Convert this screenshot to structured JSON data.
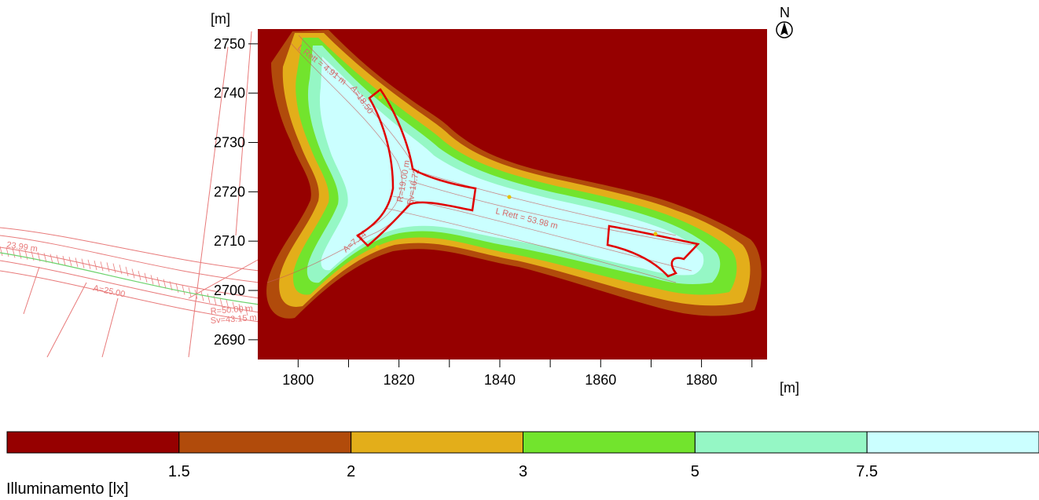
{
  "chart_data": {
    "type": "heatmap",
    "title": "",
    "xlabel": "",
    "ylabel": "",
    "x_unit": "[m]",
    "y_unit": "[m]",
    "xlim": [
      1792,
      1893
    ],
    "ylim": [
      2686,
      2753
    ],
    "x_ticks": [
      1800,
      1820,
      1840,
      1860,
      1880
    ],
    "y_ticks": [
      2690,
      2700,
      2710,
      2720,
      2730,
      2740,
      2750
    ],
    "north_label": "N",
    "legend": {
      "title": "Illuminamento [lx]",
      "thresholds": [
        "1.5",
        "2",
        "3",
        "5",
        "7.5"
      ],
      "colors": [
        "#960000",
        "#b14b0b",
        "#e3ae1a",
        "#72e42d",
        "#95f7c5",
        "#cbffff"
      ]
    },
    "plan_annotations": [
      "L Rett = 4.91 m",
      "A=18.50",
      "R=19.00 m",
      "Sv=16.72",
      "L Rett = 53.98 m",
      "A=7.34",
      "23.99 m",
      "A=25.00",
      "R=50.00 m",
      "Sv=43.15 m"
    ],
    "colors": {
      "outline_red": "#e00000",
      "plan_lines": "#e87a7a",
      "plan_green": "#6cd26c"
    }
  }
}
